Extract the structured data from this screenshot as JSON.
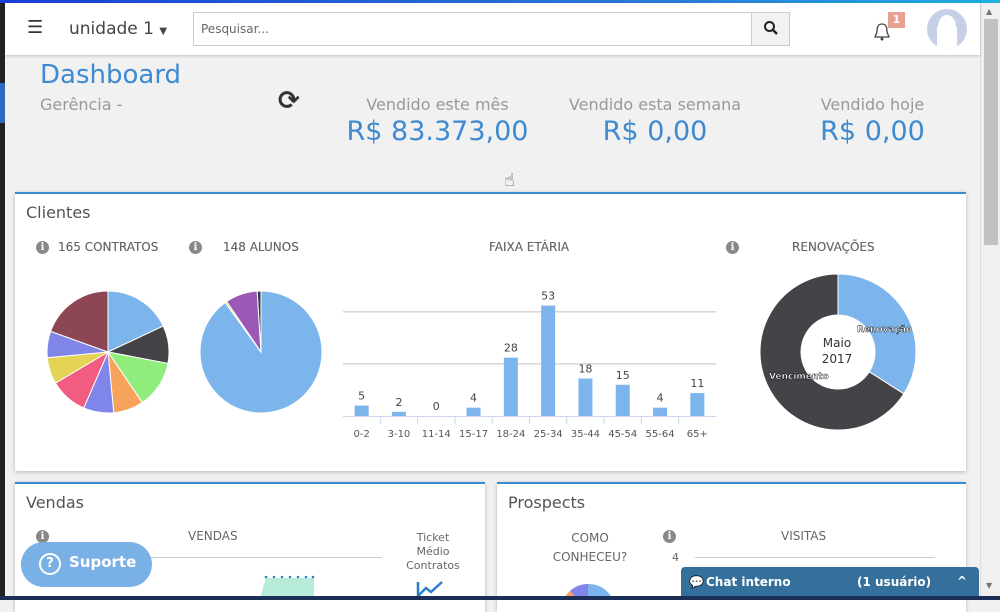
{
  "header": {
    "unit": "unidade 1",
    "search_placeholder": "Pesquisar...",
    "notification_count": "1"
  },
  "page": {
    "title": "Dashboard",
    "subtitle": "Gerência -"
  },
  "stats": [
    {
      "label": "Vendido este mês",
      "value": "R$ 83.373,00"
    },
    {
      "label": "Vendido esta semana",
      "value": "R$ 0,00"
    },
    {
      "label": "Vendido hoje",
      "value": "R$ 0,00"
    }
  ],
  "clientes": {
    "title": "Clientes",
    "contratos_label": "165 CONTRATOS",
    "alunos_label": "148 ALUNOS",
    "faixa_label": "FAIXA ETÁRIA",
    "renovacoes_label": "RENOVAÇÕES",
    "donut_center": [
      "Maio",
      "2017"
    ]
  },
  "chart_data": [
    {
      "type": "pie",
      "title": "165 CONTRATOS",
      "values_percent_approx": [
        18,
        10,
        12.5,
        8,
        8,
        10,
        7,
        7,
        19.5
      ],
      "colors": [
        "#7cb5ec",
        "#434348",
        "#90ed7d",
        "#f7a35c",
        "#8085e9",
        "#f15c80",
        "#e4d354",
        "#8085e8",
        "#8d4653"
      ]
    },
    {
      "type": "pie",
      "title": "148 ALUNOS",
      "values_percent_approx": [
        90,
        0.5,
        8.5,
        1
      ],
      "colors": [
        "#7cb5ec",
        "#e4d354",
        "#9b59b6",
        "#2b3e50"
      ]
    },
    {
      "type": "bar",
      "title": "FAIXA ETÁRIA",
      "categories": [
        "0-2",
        "3-10",
        "11-14",
        "15-17",
        "18-24",
        "25-34",
        "35-44",
        "45-54",
        "55-64",
        "65+"
      ],
      "values": [
        5,
        2,
        0,
        4,
        28,
        53,
        18,
        15,
        4,
        11
      ],
      "ylim": [
        0,
        60
      ],
      "gridlines": [
        25,
        50
      ],
      "color": "#7cb5ec"
    },
    {
      "type": "pie",
      "subtype": "donut",
      "title": "RENOVAÇÕES",
      "labels": [
        "Renovação",
        "Vencimento"
      ],
      "values_percent_approx": [
        34,
        66
      ],
      "colors": [
        "#7cb5ec",
        "#434348"
      ]
    }
  ],
  "vendas": {
    "title": "Vendas",
    "chart_label": "VENDAS",
    "ticket_label": [
      "Ticket",
      "Médio",
      "Contratos"
    ]
  },
  "prospects": {
    "title": "Prospects",
    "como_label": [
      "COMO",
      "CONHECEU?"
    ],
    "visitas_label": "VISITAS",
    "visitas_tick": "4"
  },
  "suporte": {
    "label": "Suporte"
  },
  "chat": {
    "label": "Chat interno",
    "users": "(1 usuário)"
  }
}
